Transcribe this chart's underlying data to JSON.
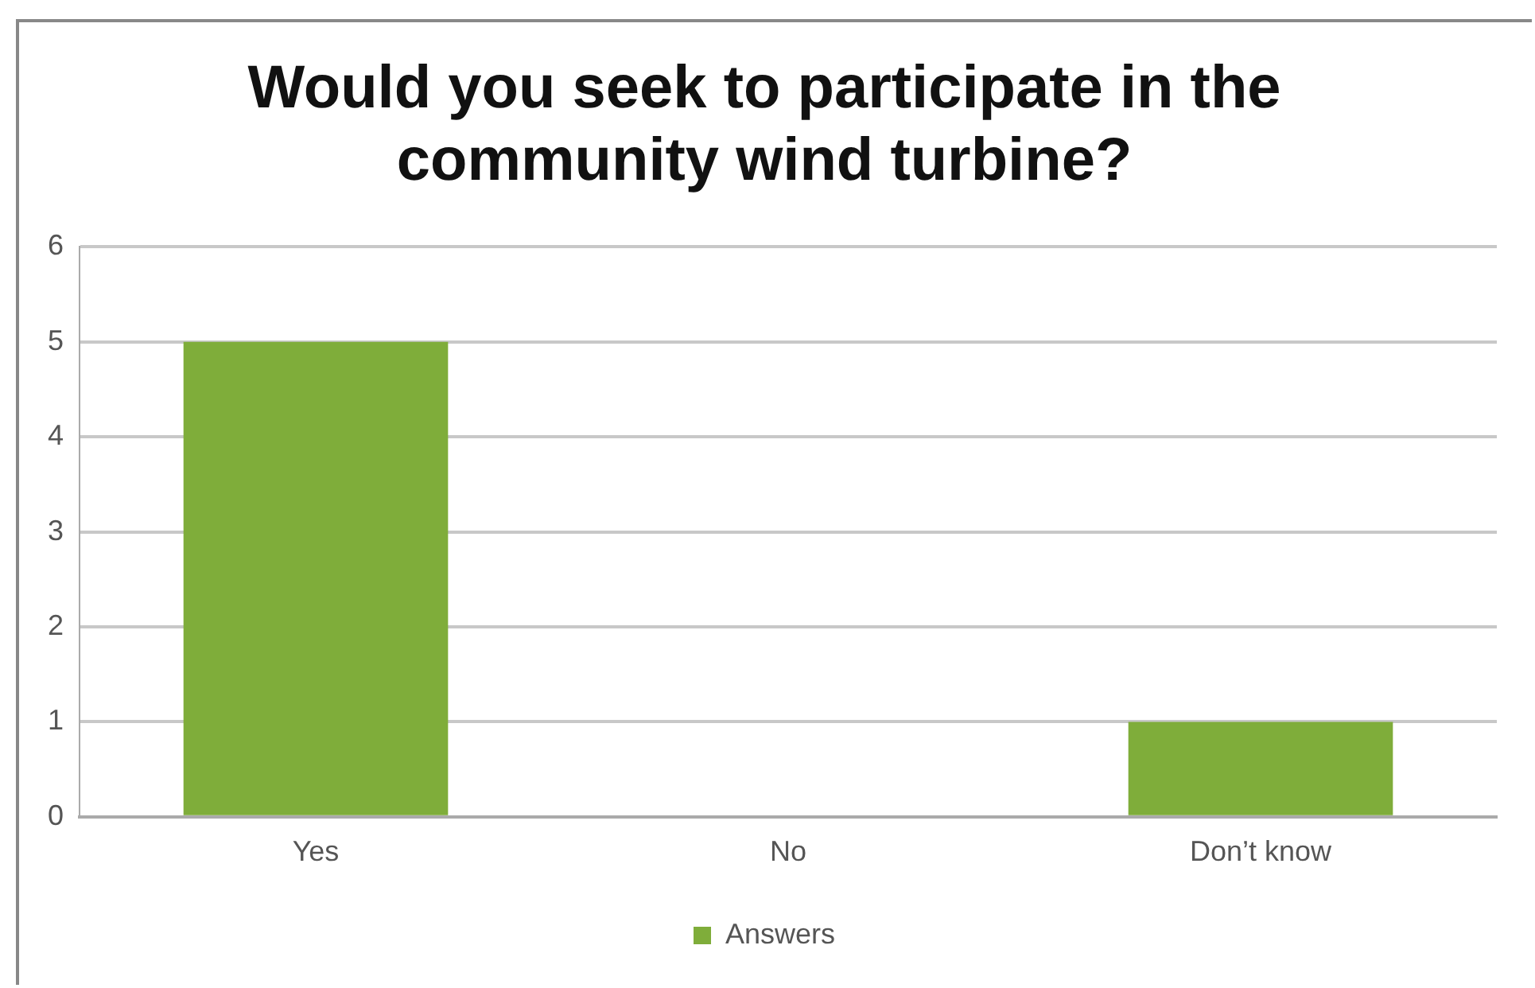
{
  "chart_data": {
    "type": "bar",
    "title": "Would you seek to participate in the community wind turbine?",
    "categories": [
      "Yes",
      "No",
      "Don’t know"
    ],
    "series": [
      {
        "name": "Answers",
        "color": "#7fad3a",
        "values": [
          5,
          0,
          1
        ]
      }
    ],
    "ylim": [
      0,
      6
    ],
    "yticks": [
      0,
      1,
      2,
      3,
      4,
      5,
      6
    ],
    "grid": "y",
    "legend": "bottom"
  }
}
